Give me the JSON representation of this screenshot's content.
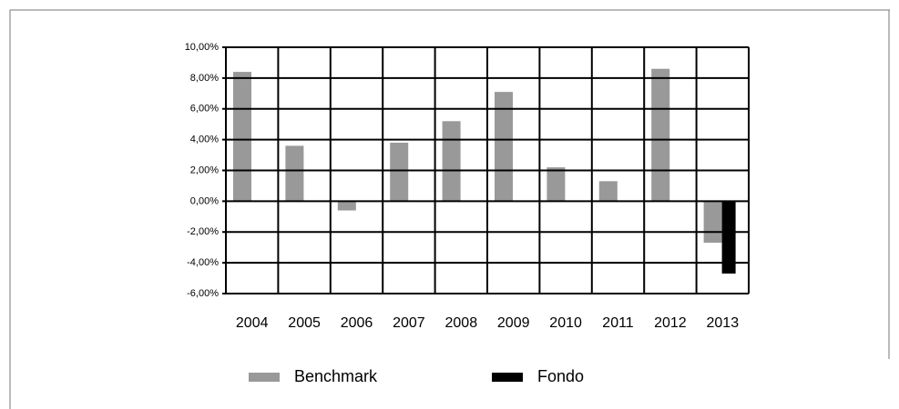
{
  "chart_data": {
    "type": "bar",
    "categories": [
      "2004",
      "2005",
      "2006",
      "2007",
      "2008",
      "2009",
      "2010",
      "2011",
      "2012",
      "2013"
    ],
    "series": [
      {
        "name": "Benchmark",
        "color": "#999999",
        "values": [
          8.4,
          3.6,
          -0.6,
          3.8,
          5.2,
          7.1,
          2.2,
          1.3,
          8.6,
          -2.7
        ]
      },
      {
        "name": "Fondo",
        "color": "#000000",
        "values": [
          null,
          null,
          null,
          null,
          null,
          null,
          null,
          null,
          null,
          -4.7
        ]
      }
    ],
    "ylim": [
      -6,
      10
    ],
    "yticks": [
      {
        "value": -6,
        "label": "-6,00%"
      },
      {
        "value": -4,
        "label": "-4,00%"
      },
      {
        "value": -2,
        "label": "-2,00%"
      },
      {
        "value": 0,
        "label": "0,00%"
      },
      {
        "value": 2,
        "label": "2,00%"
      },
      {
        "value": 4,
        "label": "4,00%"
      },
      {
        "value": 6,
        "label": "6,00%"
      },
      {
        "value": 8,
        "label": "8,00%"
      },
      {
        "value": 10,
        "label": "10,00%"
      }
    ],
    "grid": true,
    "legend": "bottom"
  }
}
